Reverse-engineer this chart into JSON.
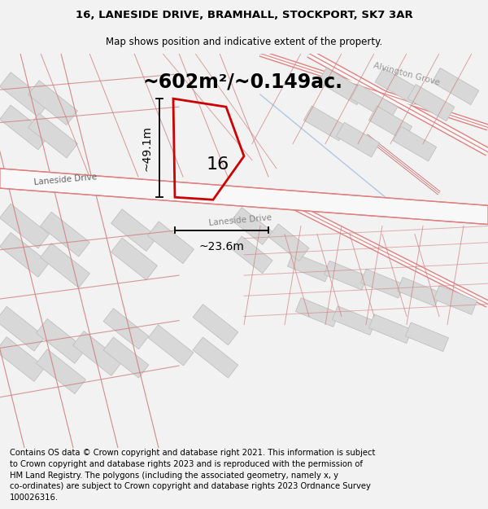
{
  "title_line1": "16, LANESIDE DRIVE, BRAMHALL, STOCKPORT, SK7 3AR",
  "title_line2": "Map shows position and indicative extent of the property.",
  "area_label": "~602m²/~0.149ac.",
  "width_label": "~23.6m",
  "height_label": "~49.1m",
  "house_number": "16",
  "street_label_left": "Laneside Drive",
  "street_label_right": "Laneside Drive",
  "alvington_label": "Alvington Grove",
  "footer_text": "Contains OS data © Crown copyright and database right 2021. This information is subject to Crown copyright and database rights 2023 and is reproduced with the permission of HM Land Registry. The polygons (including the associated geometry, namely x, y co-ordinates) are subject to Crown copyright and database rights 2023 Ordnance Survey 100026316.",
  "bg_color": "#f2f2f2",
  "map_bg": "#ffffff",
  "road_fill": "#f0f0f0",
  "road_edge": "#e08080",
  "road_edge_thin": "#d08080",
  "building_fill": "#d8d8d8",
  "building_edge": "#c0c0c0",
  "poly_color": "#cc0000",
  "poly_fill": "none",
  "dim_color": "#000000",
  "stream_color": "#b0c8e0",
  "title_fontsize": 9.5,
  "subtitle_fontsize": 8.5,
  "area_fontsize": 17,
  "label_fontsize": 9.5,
  "dim_label_fontsize": 10,
  "footer_fontsize": 7.2,
  "street_fontsize": 7.5,
  "alvington_fontsize": 7.5
}
